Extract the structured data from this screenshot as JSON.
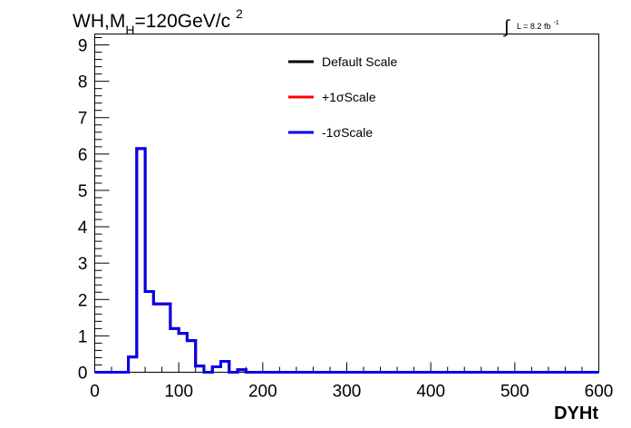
{
  "chart_data": {
    "type": "line",
    "title": {
      "prefix": "WH,M",
      "subscript": "H",
      "main": "=120GeV/c",
      "superscript": "2"
    },
    "lumi": {
      "integral": "∫",
      "label": "L = 8.2 fb",
      "superscript": "-1"
    },
    "xlabel": "DYHt",
    "ylabel": "",
    "xlim": [
      0,
      600
    ],
    "ylim": [
      0,
      9.3
    ],
    "xticks": [
      "0",
      "100",
      "200",
      "300",
      "400",
      "500",
      "600"
    ],
    "yticks": [
      "0",
      "1",
      "2",
      "3",
      "4",
      "5",
      "6",
      "7",
      "8",
      "9"
    ],
    "legend_position": "top-center",
    "bin_edges": [
      0,
      10,
      20,
      30,
      40,
      50,
      60,
      70,
      80,
      90,
      100,
      110,
      120,
      130,
      140,
      150,
      160,
      170,
      180,
      190,
      200,
      210,
      220,
      230,
      240,
      250,
      260,
      270,
      280,
      290,
      300,
      310,
      320,
      330,
      340,
      350,
      360,
      370,
      380,
      390,
      400,
      410,
      420,
      430,
      440,
      450,
      460,
      470,
      480,
      490,
      500,
      510,
      520,
      530,
      540,
      550,
      560,
      570,
      580,
      590,
      600
    ],
    "series": [
      {
        "name": "Default Scale",
        "color": "#000000",
        "values": [
          0,
          0,
          0,
          0,
          0.42,
          6.15,
          2.22,
          1.88,
          1.88,
          1.2,
          1.07,
          0.87,
          0.17,
          0,
          0.15,
          0.3,
          0,
          0.07,
          0,
          0,
          0,
          0,
          0,
          0,
          0,
          0,
          0,
          0,
          0,
          0,
          0,
          0,
          0,
          0,
          0,
          0,
          0,
          0,
          0,
          0,
          0,
          0,
          0,
          0,
          0,
          0,
          0,
          0,
          0,
          0,
          0,
          0,
          0,
          0,
          0,
          0,
          0,
          0,
          0,
          0
        ]
      },
      {
        "name": "+1σScale",
        "color": "#ff0000",
        "values": [
          0,
          0,
          0,
          0,
          0.42,
          6.15,
          2.22,
          1.88,
          1.88,
          1.2,
          1.07,
          0.87,
          0.17,
          0,
          0.15,
          0.3,
          0,
          0.07,
          0,
          0,
          0,
          0,
          0,
          0,
          0,
          0,
          0,
          0,
          0,
          0,
          0,
          0,
          0,
          0,
          0,
          0,
          0,
          0,
          0,
          0,
          0,
          0,
          0,
          0,
          0,
          0,
          0,
          0,
          0,
          0,
          0,
          0,
          0,
          0,
          0,
          0,
          0,
          0,
          0,
          0
        ]
      },
      {
        "name": "-1σScale",
        "color": "#0000ee",
        "values": [
          0,
          0,
          0,
          0,
          0.42,
          6.15,
          2.22,
          1.88,
          1.88,
          1.2,
          1.07,
          0.87,
          0.17,
          0,
          0.15,
          0.3,
          0,
          0.07,
          0,
          0,
          0,
          0,
          0,
          0,
          0,
          0,
          0,
          0,
          0,
          0,
          0,
          0,
          0,
          0,
          0,
          0,
          0,
          0,
          0,
          0,
          0,
          0,
          0,
          0,
          0,
          0,
          0,
          0,
          0,
          0,
          0,
          0,
          0,
          0,
          0,
          0,
          0,
          0,
          0,
          0
        ]
      }
    ]
  }
}
